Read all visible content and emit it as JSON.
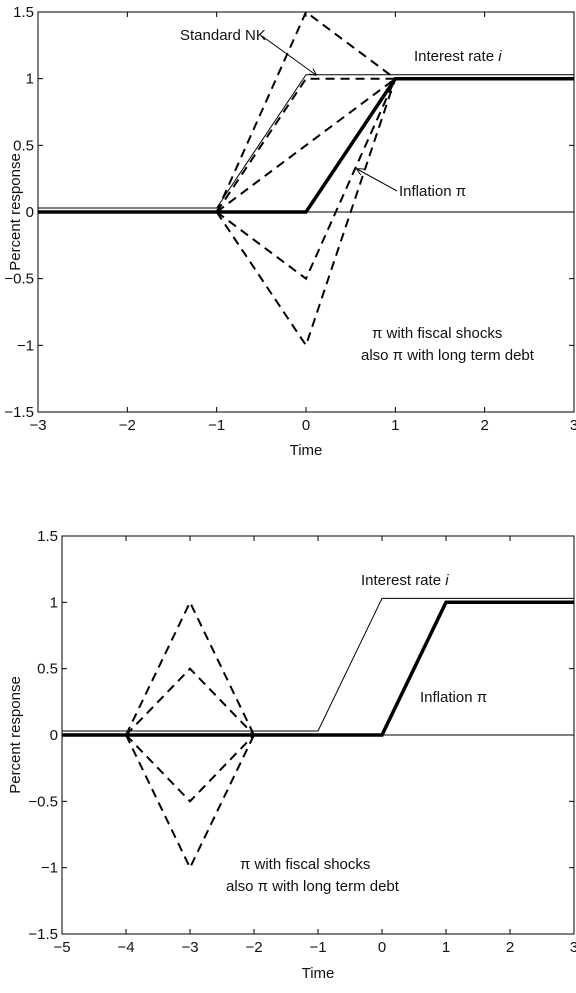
{
  "chart_data": [
    {
      "type": "line",
      "title": "",
      "xlabel": "Time",
      "ylabel": "Percent response",
      "xlim": [
        -3,
        3
      ],
      "ylim": [
        -1.5,
        1.5
      ],
      "xticks": [
        -3,
        -2,
        -1,
        0,
        1,
        2,
        3
      ],
      "yticks": [
        -1.5,
        -1,
        -0.5,
        0,
        0.5,
        1,
        1.5
      ],
      "x_tick_labels": [
        "−3",
        "−2",
        "−1",
        "0",
        "1",
        "2",
        "3"
      ],
      "y_tick_labels": [
        "−1.5",
        "−1",
        "−0.5",
        "0",
        "0.5",
        "1",
        "1.5"
      ],
      "grid": false,
      "zero_line": true,
      "series": [
        {
          "x": [
            -3,
            -1,
            0,
            3
          ],
          "y": [
            0.03,
            0.03,
            1.03,
            1.03
          ],
          "style": "thin"
        },
        {
          "x": [
            -3,
            0,
            1,
            3
          ],
          "y": [
            0,
            0,
            1,
            1
          ],
          "style": "thick"
        },
        {
          "x": [
            -1,
            0,
            1
          ],
          "y": [
            0,
            1.5,
            1
          ],
          "style": "dashed"
        },
        {
          "x": [
            -1,
            0,
            1
          ],
          "y": [
            0,
            1,
            1
          ],
          "style": "dashed"
        },
        {
          "x": [
            -1,
            0,
            1
          ],
          "y": [
            0,
            0.5,
            1
          ],
          "style": "dashed"
        },
        {
          "x": [
            -1,
            0,
            1
          ],
          "y": [
            0,
            -0.5,
            1
          ],
          "style": "dashed"
        },
        {
          "x": [
            -1,
            0,
            1
          ],
          "y": [
            0,
            -1,
            1
          ],
          "style": "dashed"
        }
      ],
      "annotations": [
        {
          "text": "Standard NK",
          "arrow_to": [
            0,
            1.02
          ]
        },
        {
          "text": "Interest rate",
          "italic_suffix": "i"
        },
        {
          "text": "Inflation π",
          "arrow_to": [
            0.45,
            0.45
          ]
        },
        {
          "text": "π with fiscal shocks"
        },
        {
          "text": "also π with long term debt"
        }
      ]
    },
    {
      "type": "line",
      "title": "",
      "xlabel": "Time",
      "ylabel": "Percent response",
      "xlim": [
        -5,
        3
      ],
      "ylim": [
        -1.5,
        1.5
      ],
      "xticks": [
        -5,
        -4,
        -3,
        -2,
        -1,
        0,
        1,
        2,
        3
      ],
      "yticks": [
        -1.5,
        -1,
        -0.5,
        0,
        0.5,
        1,
        1.5
      ],
      "x_tick_labels": [
        "−5",
        "−4",
        "−3",
        "−2",
        "−1",
        "0",
        "1",
        "2",
        "3"
      ],
      "y_tick_labels": [
        "−1.5",
        "−1",
        "−0.5",
        "0",
        "0.5",
        "1",
        "1.5"
      ],
      "grid": false,
      "zero_line": true,
      "series": [
        {
          "x": [
            -5,
            -1,
            0,
            3
          ],
          "y": [
            0.03,
            0.03,
            1.03,
            1.03
          ],
          "style": "thin"
        },
        {
          "x": [
            -5,
            0,
            1,
            3
          ],
          "y": [
            0,
            0,
            1,
            1
          ],
          "style": "thick"
        },
        {
          "x": [
            -4,
            -3,
            -2
          ],
          "y": [
            0,
            1,
            0
          ],
          "style": "dashed"
        },
        {
          "x": [
            -4,
            -3,
            -2
          ],
          "y": [
            0,
            0.5,
            0
          ],
          "style": "dashed"
        },
        {
          "x": [
            -4,
            -3,
            -2
          ],
          "y": [
            0,
            -0.5,
            0
          ],
          "style": "dashed"
        },
        {
          "x": [
            -4,
            -3,
            -2
          ],
          "y": [
            0,
            -1,
            0
          ],
          "style": "dashed"
        }
      ],
      "annotations": [
        {
          "text": "Interest rate",
          "italic_suffix": "i"
        },
        {
          "text": "Inflation π"
        },
        {
          "text": "π with fiscal shocks"
        },
        {
          "text": "also π with long term debt"
        }
      ]
    }
  ]
}
